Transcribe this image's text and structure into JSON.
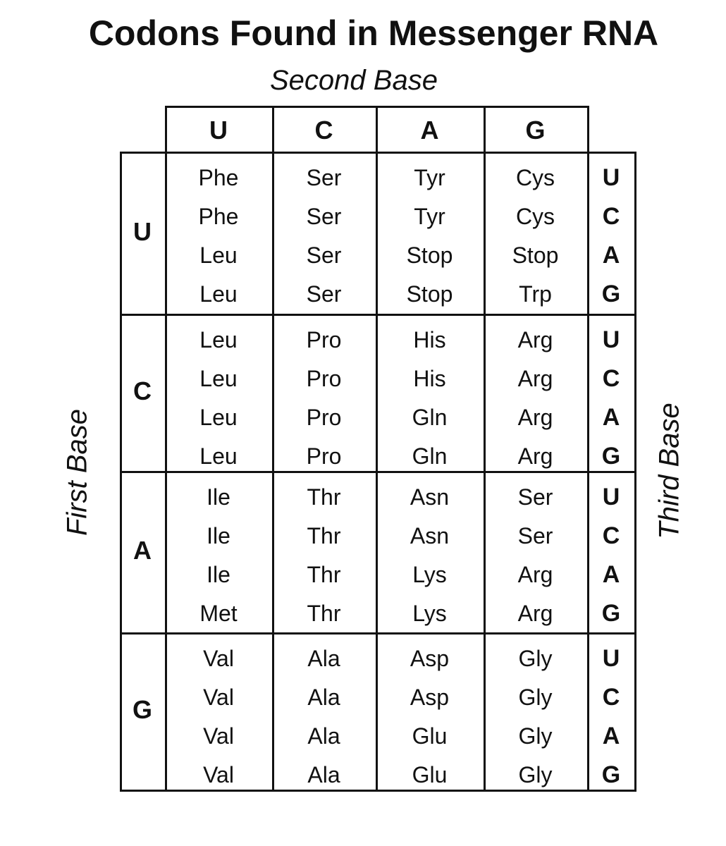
{
  "title": "Codons Found in Messenger RNA",
  "second_base_label": "Second Base",
  "first_base_label": "First Base",
  "third_base_label": "Third Base",
  "bases": [
    "U",
    "C",
    "A",
    "G"
  ],
  "table": [
    [
      [
        "Phe",
        "Phe",
        "Leu",
        "Leu"
      ],
      [
        "Ser",
        "Ser",
        "Ser",
        "Ser"
      ],
      [
        "Tyr",
        "Tyr",
        "Stop",
        "Stop"
      ],
      [
        "Cys",
        "Cys",
        "Stop",
        "Trp"
      ]
    ],
    [
      [
        "Leu",
        "Leu",
        "Leu",
        "Leu"
      ],
      [
        "Pro",
        "Pro",
        "Pro",
        "Pro"
      ],
      [
        "His",
        "His",
        "Gln",
        "Gln"
      ],
      [
        "Arg",
        "Arg",
        "Arg",
        "Arg"
      ]
    ],
    [
      [
        "Ile",
        "Ile",
        "Ile",
        "Met"
      ],
      [
        "Thr",
        "Thr",
        "Thr",
        "Thr"
      ],
      [
        "Asn",
        "Asn",
        "Lys",
        "Lys"
      ],
      [
        "Ser",
        "Ser",
        "Arg",
        "Arg"
      ]
    ],
    [
      [
        "Val",
        "Val",
        "Val",
        "Val"
      ],
      [
        "Ala",
        "Ala",
        "Ala",
        "Ala"
      ],
      [
        "Asp",
        "Asp",
        "Glu",
        "Glu"
      ],
      [
        "Gly",
        "Gly",
        "Gly",
        "Gly"
      ]
    ]
  ]
}
